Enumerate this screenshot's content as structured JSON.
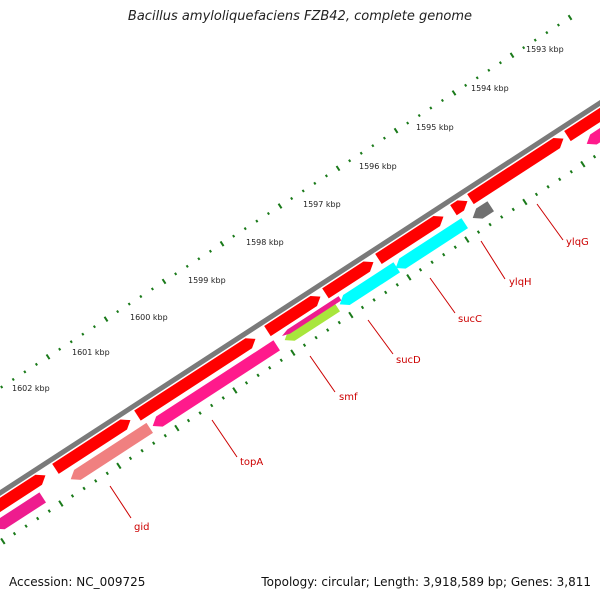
{
  "title": "Bacillus amyloliquefaciens FZB42, complete genome",
  "footer": {
    "accession": "Accession: NC_009725",
    "summary": "Topology: circular; Length: 3,918,589 bp; Genes: 3,811"
  },
  "colors": {
    "backbone": "#7a7a7a",
    "forward_strand": "#ff0000",
    "reverse_strand": "#ee1c8e",
    "tick": "#1a7a1a",
    "label": "#cc0000"
  },
  "kbp_labels": [
    "1593 kbp",
    "1594 kbp",
    "1595 kbp",
    "1596 kbp",
    "1597 kbp",
    "1598 kbp",
    "1599 kbp",
    "1600 kbp",
    "1601 kbp",
    "1602 kbp"
  ],
  "genes": [
    {
      "name": "ylqG",
      "color": "#ff1a8c"
    },
    {
      "name": "ylqH",
      "color": "#707070"
    },
    {
      "name": "sucC",
      "color": "#00ffff"
    },
    {
      "name": "sucD",
      "color": "#00ffff"
    },
    {
      "name": "smf",
      "color": "#a8e63c"
    },
    {
      "name": "topA",
      "color": "#ff1a8c"
    },
    {
      "name": "gid",
      "color": "#f08080"
    }
  ]
}
